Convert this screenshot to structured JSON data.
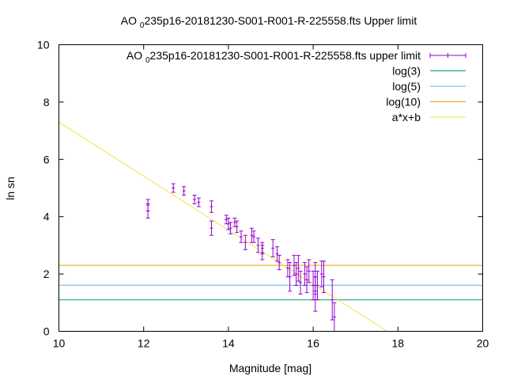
{
  "chart_data": {
    "type": "scatter",
    "title_main": "AO ",
    "title_sub": "0",
    "title_rest": "235p16-20181230-S001-R001-R-225558.fts Upper limit",
    "xlabel": "Magnitude [mag]",
    "ylabel": "ln sn",
    "xlim": [
      10,
      20
    ],
    "ylim": [
      0,
      10
    ],
    "xticks": [
      10,
      12,
      14,
      16,
      18,
      20
    ],
    "yticks": [
      0,
      2,
      4,
      6,
      8,
      10
    ],
    "grid": false,
    "legend_position": "top-right",
    "legend": [
      {
        "main": "AO ",
        "sub": "0",
        "rest": "235p16-20181230-S001-R001-R-225558.fts upper limit",
        "color": "#9400d3",
        "kind": "errorbar"
      },
      {
        "main": "log(3)",
        "sub": "",
        "rest": "",
        "color": "#009e73",
        "kind": "line"
      },
      {
        "main": "log(5)",
        "sub": "",
        "rest": "",
        "color": "#56b4e9",
        "kind": "line"
      },
      {
        "main": "log(10)",
        "sub": "",
        "rest": "",
        "color": "#e69f00",
        "kind": "line"
      },
      {
        "main": "a*x+b",
        "sub": "",
        "rest": "",
        "color": "#f0e442",
        "kind": "line"
      }
    ],
    "hlines": [
      {
        "name": "log(3)",
        "y": 1.0986,
        "color": "#009e73"
      },
      {
        "name": "log(5)",
        "y": 1.6094,
        "color": "#56b4e9"
      },
      {
        "name": "log(10)",
        "y": 2.3026,
        "color": "#e69f00"
      }
    ],
    "fit_line": {
      "name": "a*x+b",
      "x": [
        10,
        17.75
      ],
      "y": [
        7.3,
        0
      ],
      "color": "#f0e442"
    },
    "series": [
      {
        "name": "AO 0235p16-20181230-S001-R001-R-225558.fts upper limit",
        "color": "#9400d3",
        "points": [
          {
            "x": 12.1,
            "y": 4.4,
            "err": 0.2
          },
          {
            "x": 12.1,
            "y": 4.2,
            "err": 0.25
          },
          {
            "x": 12.7,
            "y": 5.0,
            "err": 0.15
          },
          {
            "x": 12.95,
            "y": 4.9,
            "err": 0.15
          },
          {
            "x": 13.2,
            "y": 4.6,
            "err": 0.15
          },
          {
            "x": 13.3,
            "y": 4.5,
            "err": 0.15
          },
          {
            "x": 13.6,
            "y": 4.35,
            "err": 0.2
          },
          {
            "x": 13.6,
            "y": 3.6,
            "err": 0.25
          },
          {
            "x": 13.95,
            "y": 3.9,
            "err": 0.15
          },
          {
            "x": 14.0,
            "y": 3.75,
            "err": 0.2
          },
          {
            "x": 14.05,
            "y": 3.6,
            "err": 0.2
          },
          {
            "x": 14.15,
            "y": 3.8,
            "err": 0.15
          },
          {
            "x": 14.2,
            "y": 3.65,
            "err": 0.2
          },
          {
            "x": 14.3,
            "y": 3.3,
            "err": 0.2
          },
          {
            "x": 14.4,
            "y": 3.1,
            "err": 0.25
          },
          {
            "x": 14.55,
            "y": 3.35,
            "err": 0.25
          },
          {
            "x": 14.6,
            "y": 3.3,
            "err": 0.2
          },
          {
            "x": 14.7,
            "y": 3.0,
            "err": 0.25
          },
          {
            "x": 14.8,
            "y": 2.75,
            "err": 0.25
          },
          {
            "x": 14.8,
            "y": 2.9,
            "err": 0.2
          },
          {
            "x": 15.05,
            "y": 2.9,
            "err": 0.3
          },
          {
            "x": 15.15,
            "y": 2.7,
            "err": 0.25
          },
          {
            "x": 15.2,
            "y": 2.4,
            "err": 0.25
          },
          {
            "x": 15.4,
            "y": 2.2,
            "err": 0.3
          },
          {
            "x": 15.45,
            "y": 1.9,
            "err": 0.5
          },
          {
            "x": 15.55,
            "y": 2.3,
            "err": 0.35
          },
          {
            "x": 15.6,
            "y": 2.0,
            "err": 0.4
          },
          {
            "x": 15.65,
            "y": 2.2,
            "err": 0.45
          },
          {
            "x": 15.7,
            "y": 1.7,
            "err": 0.4
          },
          {
            "x": 15.8,
            "y": 2.0,
            "err": 0.4
          },
          {
            "x": 15.85,
            "y": 1.8,
            "err": 0.45
          },
          {
            "x": 15.9,
            "y": 2.1,
            "err": 0.4
          },
          {
            "x": 16.0,
            "y": 1.6,
            "err": 0.5
          },
          {
            "x": 16.05,
            "y": 1.9,
            "err": 0.5
          },
          {
            "x": 16.05,
            "y": 1.3,
            "err": 0.6
          },
          {
            "x": 16.1,
            "y": 1.6,
            "err": 0.5
          },
          {
            "x": 16.2,
            "y": 2.0,
            "err": 0.45
          },
          {
            "x": 16.25,
            "y": 1.9,
            "err": 0.55
          },
          {
            "x": 16.45,
            "y": 1.1,
            "err": 0.7
          },
          {
            "x": 16.5,
            "y": 0.5,
            "err": 0.5
          }
        ]
      }
    ]
  }
}
